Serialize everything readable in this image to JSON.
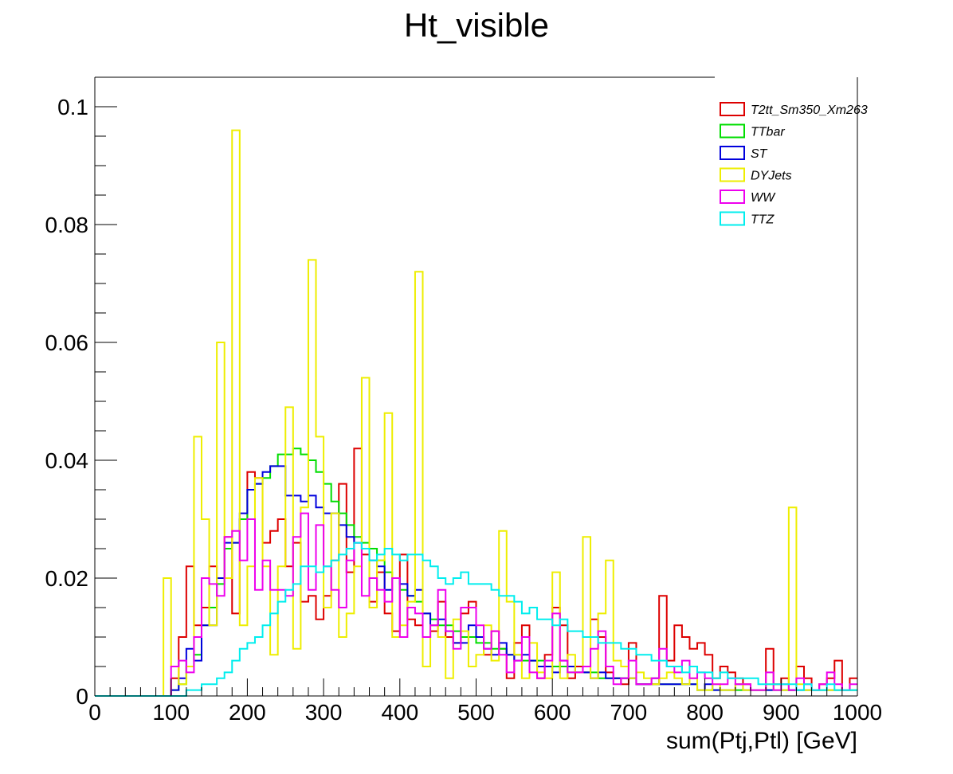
{
  "chart_data": {
    "type": "histogram-step",
    "title": "Ht_visible",
    "xlabel": "sum(Ptj,Ptl) [GeV]",
    "ylabel": "",
    "xlim": [
      0,
      1000
    ],
    "ylim": [
      0,
      0.105
    ],
    "bin_width": 10,
    "x_ticks": [
      0,
      100,
      200,
      300,
      400,
      500,
      600,
      700,
      800,
      900,
      1000
    ],
    "y_ticks": [
      0,
      0.02,
      0.04,
      0.06,
      0.08,
      0.1
    ],
    "y_tick_labels": [
      "0",
      "0.02",
      "0.04",
      "0.06",
      "0.08",
      "0.1"
    ],
    "grid": false,
    "legend_position": "top-right",
    "series": [
      {
        "name": "T2tt_Sm350_Xm263",
        "color": "#dd0000",
        "values": [
          0,
          0,
          0,
          0,
          0,
          0,
          0,
          0,
          0,
          0,
          0.003,
          0.01,
          0.022,
          0.012,
          0.015,
          0.022,
          0.02,
          0.027,
          0.014,
          0.03,
          0.038,
          0.037,
          0.026,
          0.028,
          0.03,
          0.022,
          0.026,
          0.016,
          0.017,
          0.013,
          0.017,
          0.023,
          0.036,
          0.021,
          0.042,
          0.024,
          0.016,
          0.021,
          0.014,
          0.011,
          0.024,
          0.013,
          0.012,
          0.01,
          0.011,
          0.016,
          0.01,
          0.009,
          0.014,
          0.016,
          0.01,
          0.007,
          0.011,
          0.008,
          0.003,
          0.009,
          0.012,
          0.006,
          0.003,
          0.007,
          0.015,
          0.012,
          0.003,
          0.005,
          0.004,
          0.013,
          0.01,
          0.004,
          0.003,
          0.002,
          0.009,
          0.002,
          0.002,
          0.002,
          0.017,
          0.006,
          0.012,
          0.01,
          0.008,
          0.009,
          0.007,
          0.003,
          0.005,
          0.004,
          0.003,
          0.002,
          0.001,
          0.001,
          0.008,
          0.002,
          0.003,
          0.001,
          0.005,
          0.003,
          0.001,
          0.002,
          0.003,
          0.006,
          0.001,
          0.003
        ]
      },
      {
        "name": "TTbar",
        "color": "#00dd00",
        "values": [
          0,
          0,
          0,
          0,
          0,
          0,
          0,
          0,
          0,
          0,
          0.001,
          0.002,
          0.005,
          0.007,
          0.012,
          0.015,
          0.019,
          0.025,
          0.026,
          0.03,
          0.035,
          0.036,
          0.037,
          0.039,
          0.041,
          0.041,
          0.042,
          0.041,
          0.04,
          0.038,
          0.036,
          0.033,
          0.031,
          0.029,
          0.027,
          0.026,
          0.025,
          0.023,
          0.021,
          0.02,
          0.018,
          0.017,
          0.016,
          0.014,
          0.013,
          0.012,
          0.012,
          0.011,
          0.01,
          0.01,
          0.009,
          0.009,
          0.008,
          0.008,
          0.007,
          0.007,
          0.006,
          0.006,
          0.006,
          0.005,
          0.005,
          0.005,
          0.004,
          0.004,
          0.004,
          0.004,
          0.003,
          0.003,
          0.003,
          0.003,
          0.003,
          0.002,
          0.002,
          0.002,
          0.002,
          0.002,
          0.002,
          0.002,
          0.002,
          0.001,
          0.001,
          0.001,
          0.001,
          0.001,
          0.001,
          0.001,
          0.001,
          0.001,
          0.001,
          0.001,
          0.001,
          0.001,
          0.001,
          0.001,
          0.001,
          0.001,
          0.001,
          0.001,
          0.001,
          0.001
        ]
      },
      {
        "name": "ST",
        "color": "#0000dd",
        "values": [
          0,
          0,
          0,
          0,
          0,
          0,
          0,
          0,
          0,
          0,
          0.001,
          0.003,
          0.008,
          0.006,
          0.012,
          0.012,
          0.02,
          0.026,
          0.026,
          0.031,
          0.035,
          0.036,
          0.038,
          0.039,
          0.039,
          0.034,
          0.034,
          0.033,
          0.034,
          0.032,
          0.031,
          0.031,
          0.029,
          0.027,
          0.026,
          0.025,
          0.023,
          0.022,
          0.018,
          0.02,
          0.019,
          0.017,
          0.018,
          0.014,
          0.012,
          0.013,
          0.011,
          0.009,
          0.009,
          0.012,
          0.01,
          0.008,
          0.007,
          0.009,
          0.007,
          0.006,
          0.007,
          0.006,
          0.005,
          0.005,
          0.004,
          0.006,
          0.005,
          0.004,
          0.004,
          0.003,
          0.004,
          0.003,
          0.003,
          0.003,
          0.003,
          0.002,
          0.002,
          0.003,
          0.002,
          0.002,
          0.002,
          0.002,
          0.002,
          0.001,
          0.002,
          0.001,
          0.001,
          0.001,
          0.002,
          0.001,
          0.001,
          0.001,
          0.001,
          0.001,
          0.001,
          0.001,
          0.001,
          0.001,
          0.001,
          0.001,
          0.001,
          0.001,
          0.001,
          0.001
        ]
      },
      {
        "name": "DYJets",
        "color": "#eeee00",
        "values": [
          0,
          0,
          0,
          0,
          0,
          0,
          0,
          0,
          0,
          0.02,
          0.005,
          0.002,
          0.005,
          0.044,
          0.03,
          0.012,
          0.06,
          0.02,
          0.096,
          0.012,
          0.022,
          0.037,
          0.022,
          0.007,
          0.022,
          0.049,
          0.008,
          0.032,
          0.074,
          0.044,
          0.015,
          0.031,
          0.01,
          0.014,
          0.022,
          0.054,
          0.015,
          0.023,
          0.048,
          0.01,
          0.012,
          0.016,
          0.072,
          0.005,
          0.012,
          0.01,
          0.003,
          0.013,
          0.011,
          0.005,
          0.007,
          0.012,
          0.006,
          0.028,
          0.016,
          0.007,
          0.003,
          0.009,
          0.004,
          0.003,
          0.021,
          0.003,
          0.007,
          0.004,
          0.027,
          0.003,
          0.014,
          0.023,
          0.006,
          0.005,
          0.003,
          0.004,
          0.003,
          0.002,
          0.003,
          0.004,
          0.003,
          0.002,
          0.003,
          0.001,
          0.001,
          0.002,
          0.001,
          0.001,
          0.002,
          0.001,
          0.001,
          0.001,
          0.002,
          0.001,
          0.001,
          0.032,
          0.002,
          0.001,
          0.001,
          0.001,
          0.001,
          0.001,
          0.001,
          0.001
        ]
      },
      {
        "name": "WW",
        "color": "#ee00ee",
        "values": [
          0,
          0,
          0,
          0,
          0,
          0,
          0,
          0,
          0,
          0,
          0.005,
          0.006,
          0.004,
          0.01,
          0.02,
          0.019,
          0.017,
          0.027,
          0.028,
          0.023,
          0.03,
          0.018,
          0.023,
          0.018,
          0.018,
          0.017,
          0.027,
          0.031,
          0.018,
          0.029,
          0.022,
          0.018,
          0.015,
          0.023,
          0.026,
          0.017,
          0.02,
          0.018,
          0.016,
          0.02,
          0.01,
          0.015,
          0.014,
          0.01,
          0.012,
          0.018,
          0.011,
          0.008,
          0.015,
          0.015,
          0.012,
          0.008,
          0.011,
          0.007,
          0.004,
          0.006,
          0.01,
          0.004,
          0.003,
          0.006,
          0.014,
          0.006,
          0.004,
          0.004,
          0.005,
          0.008,
          0.011,
          0.005,
          0.002,
          0.003,
          0.006,
          0.002,
          0.002,
          0.003,
          0.008,
          0.005,
          0.004,
          0.006,
          0.003,
          0.004,
          0.003,
          0.002,
          0.002,
          0.003,
          0.002,
          0.002,
          0.001,
          0.001,
          0.004,
          0.001,
          0.002,
          0.001,
          0.003,
          0.002,
          0.001,
          0.002,
          0.004,
          0.002,
          0.001,
          0.002
        ]
      },
      {
        "name": "TTZ",
        "color": "#00eeee",
        "values": [
          0,
          0,
          0,
          0,
          0,
          0,
          0,
          0,
          0,
          0,
          0,
          0,
          0.001,
          0.001,
          0.002,
          0.002,
          0.003,
          0.004,
          0.006,
          0.008,
          0.009,
          0.01,
          0.012,
          0.014,
          0.016,
          0.018,
          0.019,
          0.022,
          0.022,
          0.021,
          0.022,
          0.023,
          0.024,
          0.025,
          0.026,
          0.025,
          0.023,
          0.024,
          0.025,
          0.024,
          0.023,
          0.024,
          0.024,
          0.023,
          0.022,
          0.02,
          0.019,
          0.02,
          0.021,
          0.019,
          0.019,
          0.019,
          0.018,
          0.017,
          0.017,
          0.016,
          0.014,
          0.015,
          0.013,
          0.013,
          0.012,
          0.013,
          0.011,
          0.011,
          0.01,
          0.01,
          0.009,
          0.009,
          0.009,
          0.008,
          0.008,
          0.007,
          0.007,
          0.006,
          0.006,
          0.005,
          0.005,
          0.004,
          0.005,
          0.004,
          0.004,
          0.003,
          0.004,
          0.003,
          0.003,
          0.003,
          0.003,
          0.002,
          0.002,
          0.002,
          0.002,
          0.002,
          0.001,
          0.002,
          0.001,
          0.001,
          0.002,
          0.001,
          0.001,
          0.001
        ]
      }
    ]
  }
}
